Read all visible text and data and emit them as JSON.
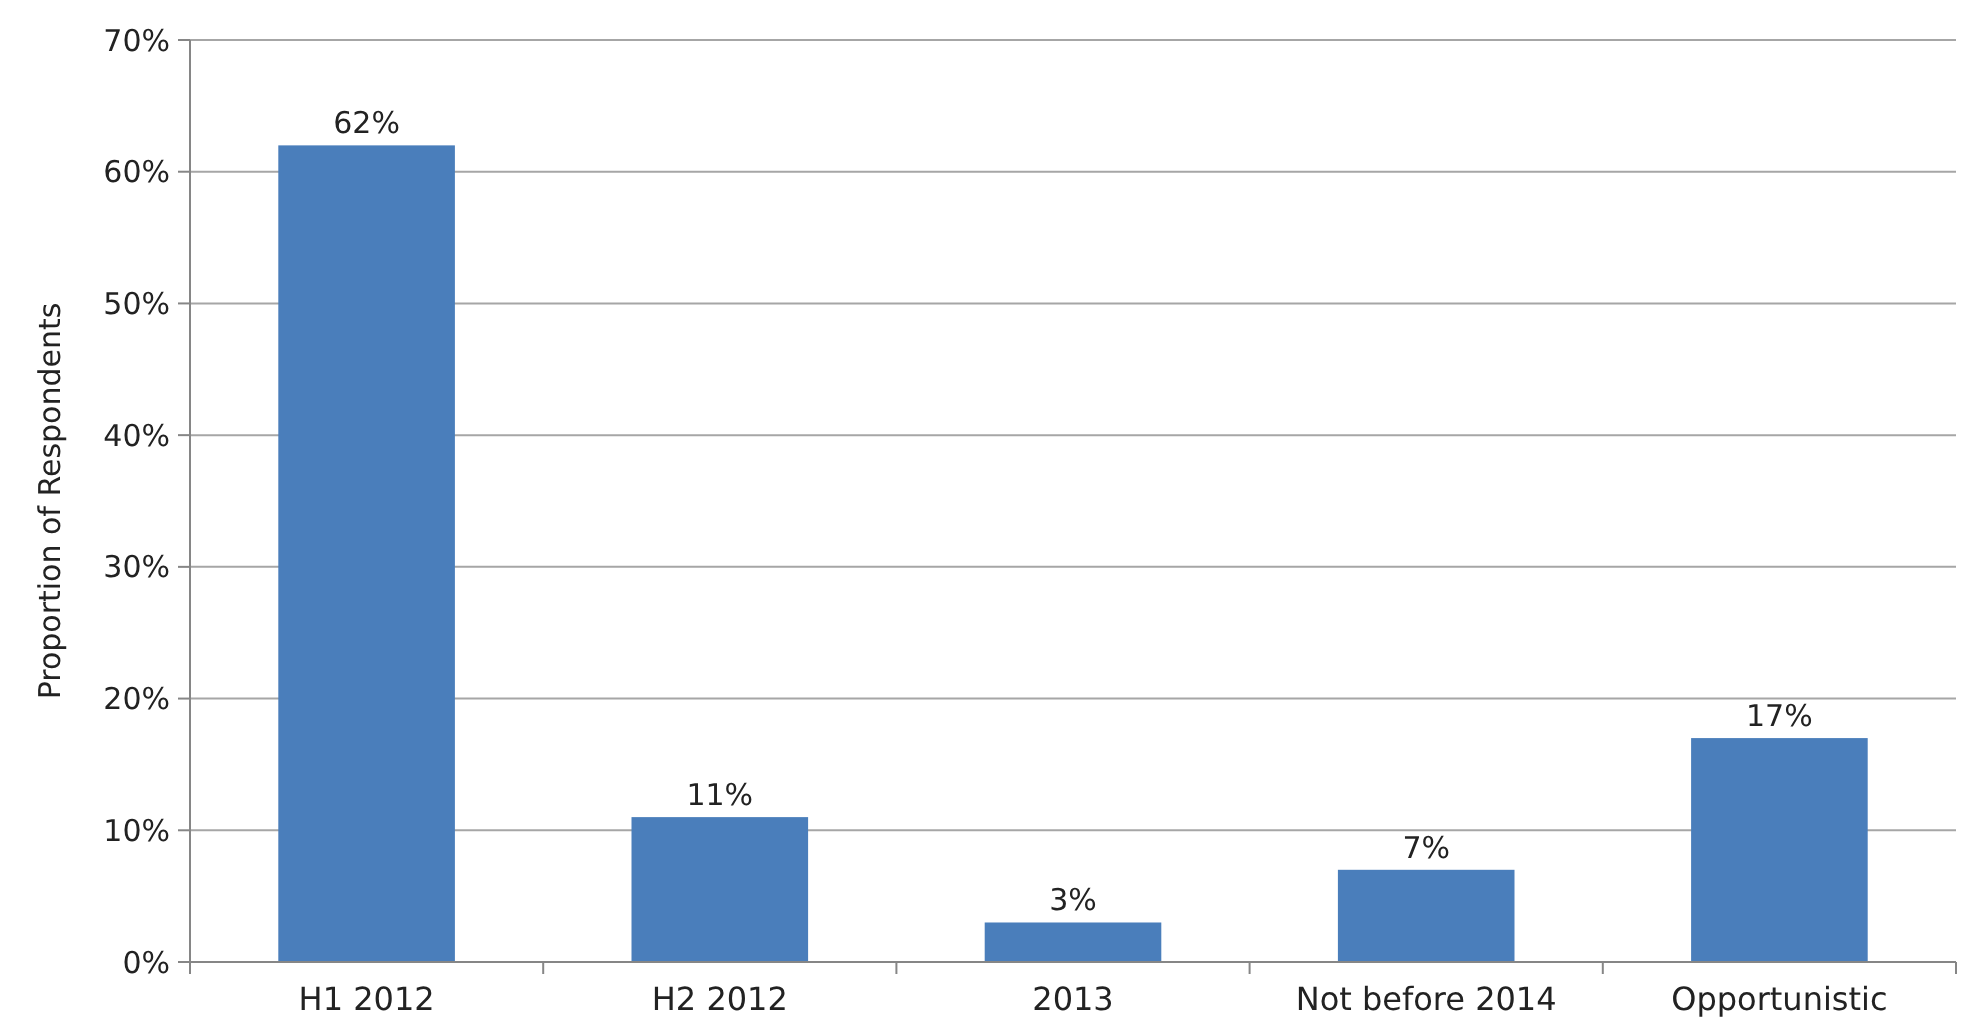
{
  "chart_data": {
    "type": "bar",
    "ylabel": "Proportion of Respondents",
    "categories": [
      "H1 2012",
      "H2 2012",
      "2013",
      "Not before 2014",
      "Opportunistic"
    ],
    "values": [
      62,
      11,
      3,
      7,
      17
    ],
    "color": "#4a7ebb",
    "ylim": [
      0,
      70
    ],
    "yticks": [
      {
        "value": 0,
        "label": "0%"
      },
      {
        "value": 10,
        "label": "10%"
      },
      {
        "value": 20,
        "label": "20%"
      },
      {
        "value": 30,
        "label": "30%"
      },
      {
        "value": 40,
        "label": "40%"
      },
      {
        "value": 50,
        "label": "50%"
      },
      {
        "value": 60,
        "label": "60%"
      },
      {
        "value": 70,
        "label": "70%"
      }
    ],
    "value_labels": [
      "62%",
      "11%",
      "3%",
      "7%",
      "17%"
    ],
    "grid": "y"
  }
}
